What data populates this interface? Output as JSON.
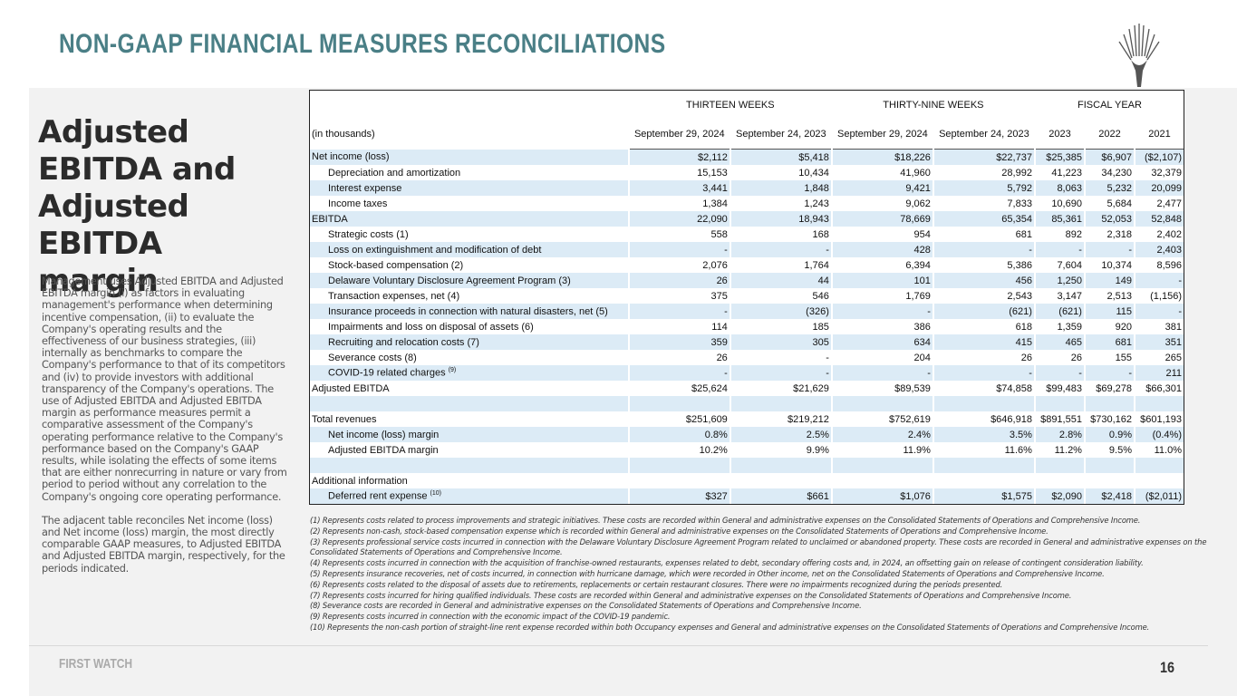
{
  "header": {
    "title": "NON-GAAP FINANCIAL MEASURES RECONCILIATIONS"
  },
  "side": {
    "heading": "Adjusted EBITDA and Adjusted EBITDA margin",
    "paragraphs": [
      "Management uses Adjusted EBITDA and Adjusted EBITDA margin (i) as factors in evaluating management's performance when determining incentive compensation, (ii) to evaluate the Company's operating results and the effectiveness of our business strategies, (iii) internally as benchmarks to compare the Company's performance to that of its competitors and (iv) to provide investors with additional transparency of the Company's operations. The use of Adjusted EBITDA and Adjusted EBITDA margin as performance measures permit a comparative assessment of the Company's operating performance relative to the Company's performance based on the Company's GAAP results, while isolating the effects of some items that are either nonrecurring in nature or vary from period to period without any correlation to the Company's ongoing core operating performance.",
      "The adjacent table reconciles Net income (loss) and Net income (loss) margin, the most directly comparable GAAP measures, to Adjusted EBITDA and Adjusted EBITDA margin, respectively, for the periods indicated."
    ]
  },
  "table": {
    "group_headers": [
      "THIRTEEN WEEKS",
      "THIRTY-NINE WEEKS",
      "FISCAL YEAR"
    ],
    "column_headers": [
      "(in thousands)",
      "September 29, 2024",
      "September 24, 2023",
      "September 29, 2024",
      "September 24, 2023",
      "2023",
      "2022",
      "2021"
    ],
    "sections": [
      [
        {
          "label": "Net income (loss)",
          "cells": [
            "$2,112",
            "$5,418",
            "$18,226",
            "$22,737",
            "$25,385",
            "$6,907",
            "($2,107)"
          ]
        },
        {
          "label": "Depreciation and amortization",
          "indent": true,
          "cells": [
            "15,153",
            "10,434",
            "41,960",
            "28,992",
            "41,223",
            "34,230",
            "32,379"
          ]
        },
        {
          "label": "Interest expense",
          "indent": true,
          "cells": [
            "3,441",
            "1,848",
            "9,421",
            "5,792",
            "8,063",
            "5,232",
            "20,099"
          ]
        },
        {
          "label": "Income taxes",
          "indent": true,
          "cells": [
            "1,384",
            "1,243",
            "9,062",
            "7,833",
            "10,690",
            "5,684",
            "2,477"
          ]
        },
        {
          "label": "EBITDA",
          "cells": [
            "22,090",
            "18,943",
            "78,669",
            "65,354",
            "85,361",
            "52,053",
            "52,848"
          ]
        },
        {
          "label": "Strategic costs (1)",
          "indent": true,
          "cells": [
            "558",
            "168",
            "954",
            "681",
            "892",
            "2,318",
            "2,402"
          ]
        },
        {
          "label": "Loss on extinguishment and modification of debt",
          "indent": true,
          "cells": [
            "-",
            "-",
            "428",
            "-",
            "-",
            "-",
            "2,403"
          ]
        },
        {
          "label": "Stock-based compensation (2)",
          "indent": true,
          "cells": [
            "2,076",
            "1,764",
            "6,394",
            "5,386",
            "7,604",
            "10,374",
            "8,596"
          ]
        },
        {
          "label": "Delaware Voluntary Disclosure Agreement Program (3)",
          "indent": true,
          "cells": [
            "26",
            "44",
            "101",
            "456",
            "1,250",
            "149",
            "-"
          ]
        },
        {
          "label": "Transaction expenses, net (4)",
          "indent": true,
          "cells": [
            "375",
            "546",
            "1,769",
            "2,543",
            "3,147",
            "2,513",
            "(1,156)"
          ]
        },
        {
          "label": "Insurance proceeds in connection with natural disasters, net (5)",
          "indent": true,
          "cells": [
            "-",
            "(326)",
            "-",
            "(621)",
            "(621)",
            "115",
            "-"
          ]
        },
        {
          "label": "Impairments and loss on disposal of assets (6)",
          "indent": true,
          "cells": [
            "114",
            "185",
            "386",
            "618",
            "1,359",
            "920",
            "381"
          ]
        },
        {
          "label": "Recruiting and relocation costs (7)",
          "indent": true,
          "cells": [
            "359",
            "305",
            "634",
            "415",
            "465",
            "681",
            "351"
          ]
        },
        {
          "label": "Severance costs (8)",
          "indent": true,
          "cells": [
            "26",
            "-",
            "204",
            "26",
            "26",
            "155",
            "265"
          ]
        },
        {
          "label": "COVID-19 related charges",
          "sup": "(9)",
          "indent": true,
          "cells": [
            "-",
            "-",
            "-",
            "-",
            "-",
            "-",
            "211"
          ]
        },
        {
          "label": "Adjusted EBITDA",
          "cells": [
            "$25,624",
            "$21,629",
            "$89,539",
            "$74,858",
            "$99,483",
            "$69,278",
            "$66,301"
          ]
        }
      ],
      [
        {
          "label": "Total revenues",
          "cells": [
            "$251,609",
            "$219,212",
            "$752,619",
            "$646,918",
            "$891,551",
            "$730,162",
            "$601,193"
          ]
        },
        {
          "label": "Net income (loss) margin",
          "indent": true,
          "cells": [
            "0.8%",
            "2.5%",
            "2.4%",
            "3.5%",
            "2.8%",
            "0.9%",
            "(0.4%)"
          ]
        },
        {
          "label": "Adjusted EBITDA margin",
          "indent": true,
          "cells": [
            "10.2%",
            "9.9%",
            "11.9%",
            "11.6%",
            "11.2%",
            "9.5%",
            "11.0%"
          ]
        }
      ],
      [
        {
          "label": "Additional information",
          "cells": []
        },
        {
          "label": "Deferred rent expense",
          "sup": "(10)",
          "indent": true,
          "cells": [
            "$327",
            "$661",
            "$1,076",
            "$1,575",
            "$2,090",
            "$2,418",
            "($2,011)"
          ]
        }
      ]
    ]
  },
  "footnotes": [
    "(1) Represents costs related to process improvements and strategic initiatives. These costs are recorded within General and administrative expenses on the Consolidated Statements of Operations and Comprehensive Income.",
    "(2) Represents non-cash, stock-based compensation expense which is recorded within General and administrative expenses on the Consolidated Statements of Operations and Comprehensive Income.",
    "(3) Represents professional service costs incurred in connection with the Delaware Voluntary Disclosure Agreement Program related to unclaimed or abandoned property. These costs are recorded in General and administrative expenses on the Consolidated Statements of Operations and Comprehensive Income.",
    "(4) Represents costs incurred in connection with the acquisition of franchise-owned restaurants, expenses related to debt, secondary offering costs and, in 2024, an offsetting gain on release of contingent consideration liability.",
    "(5) Represents insurance recoveries, net of costs incurred, in connection with hurricane damage, which were recorded in Other income, net on the Consolidated Statements of Operations and Comprehensive Income.",
    "(6) Represents costs related to the disposal of assets due to retirements, replacements or certain restaurant closures. There were no impairments recognized during the periods presented.",
    "(7) Represents costs incurred for hiring qualified individuals. These costs are recorded within General and administrative expenses on the Consolidated Statements of Operations and Comprehensive Income.",
    "(8) Severance costs are recorded in General and administrative expenses on the Consolidated Statements of Operations and Comprehensive Income.",
    "(9) Represents costs incurred in connection with the economic impact of the COVID-19 pandemic.",
    "(10) Represents the non-cash portion of straight-line rent expense recorded within both Occupancy expenses and General and administrative expenses on the Consolidated Statements of Operations and Comprehensive Income."
  ],
  "footer": {
    "brand": "FIRST WATCH",
    "page": "16"
  }
}
